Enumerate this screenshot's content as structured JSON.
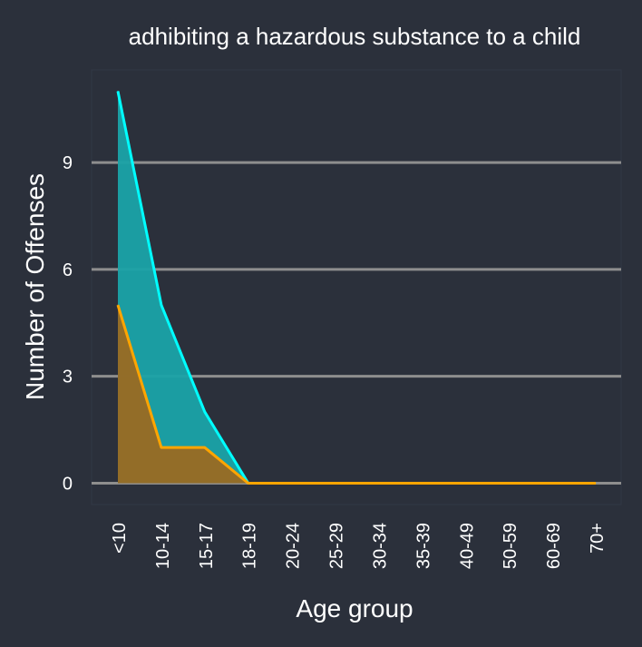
{
  "chart_data": {
    "type": "area",
    "title": "adhibiting a hazardous substance to a child",
    "xlabel": "Age group",
    "ylabel": "Number of Offenses",
    "categories": [
      "<10",
      "10-14",
      "15-17",
      "18-19",
      "20-24",
      "25-29",
      "30-34",
      "35-39",
      "40-49",
      "50-59",
      "60-69",
      "70+"
    ],
    "series": [
      {
        "color": "#00ffff",
        "fill": "#1aa3a8",
        "values": [
          11,
          5,
          2,
          0,
          0,
          0,
          0,
          0,
          0,
          0,
          0,
          0
        ]
      },
      {
        "color": "#ffa500",
        "fill": "#9a6a22",
        "values": [
          5,
          1,
          1,
          0,
          0,
          0,
          0,
          0,
          0,
          0,
          0,
          0
        ]
      }
    ],
    "yticks": [
      0,
      3,
      6,
      9
    ],
    "ylim": [
      -0.6,
      11.6
    ],
    "grid": "horizontal",
    "legend": "none",
    "colors": {
      "background": "#2b303b",
      "grid": "#8e8e8e",
      "text": "#ffffff"
    }
  }
}
